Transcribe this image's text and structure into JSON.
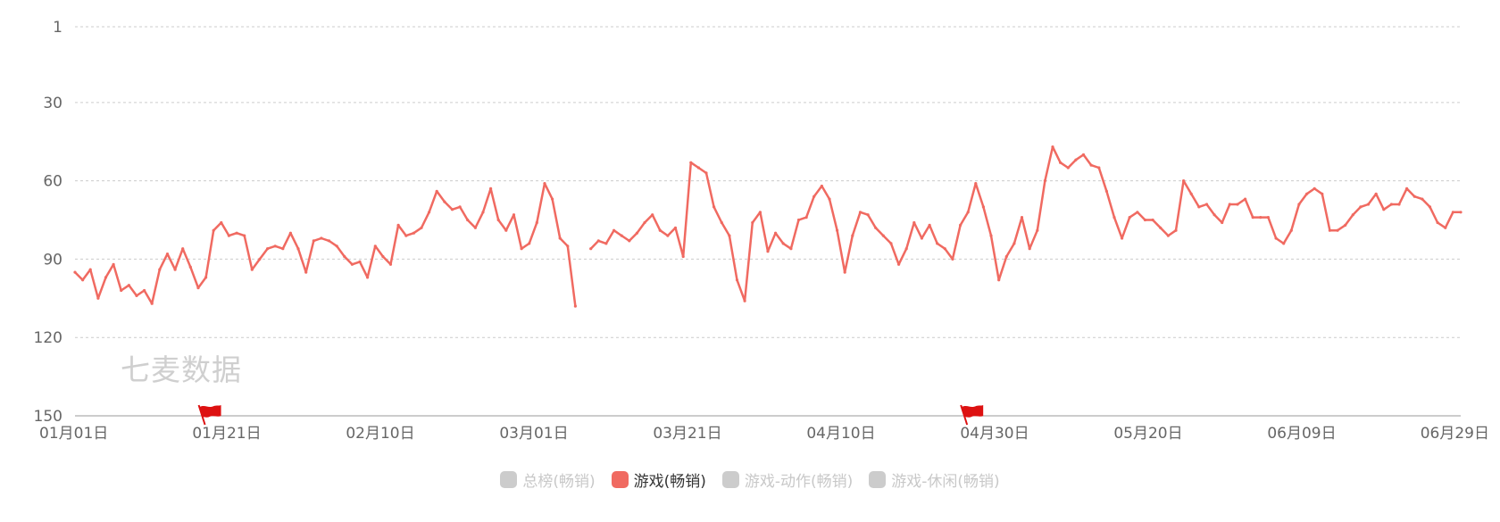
{
  "watermark": "七麦数据",
  "colors": {
    "active_series": "#f06a61",
    "inactive": "#cccccc",
    "grid": "#cccccc",
    "axis": "#999999",
    "text": "#666666",
    "flag": "#dd1111"
  },
  "legend": [
    {
      "label": "总榜(畅销)",
      "active": false
    },
    {
      "label": "游戏(畅销)",
      "active": true
    },
    {
      "label": "游戏-动作(畅销)",
      "active": false
    },
    {
      "label": "游戏-休闲(畅销)",
      "active": false
    }
  ],
  "chart_data": {
    "type": "line",
    "y_inverted": true,
    "ylim": [
      1,
      150
    ],
    "yticks": [
      "1",
      "30",
      "60",
      "90",
      "120",
      "150"
    ],
    "xticks": [
      "01月01日",
      "01月21日",
      "02月10日",
      "03月01日",
      "03月21日",
      "04月10日",
      "04月30日",
      "05月20日",
      "06月09日",
      "06月29日"
    ],
    "flags": [
      {
        "date": "01-18",
        "icon": "flag-icon"
      },
      {
        "date": "04-26",
        "icon": "flag-icon"
      }
    ],
    "series": [
      {
        "name": "游戏(畅销)",
        "color": "#f06a61",
        "segments": [
          {
            "start": "01-01",
            "values": [
              95,
              98,
              94,
              105,
              97,
              92,
              102,
              100,
              104,
              102,
              107,
              94,
              88,
              94,
              86,
              93,
              101,
              97,
              79,
              76,
              81,
              80,
              81,
              94,
              90,
              86,
              85,
              86,
              80,
              86,
              95,
              83,
              82,
              83,
              85,
              89,
              92,
              91,
              97,
              85,
              89,
              92,
              77,
              81,
              80,
              78,
              72,
              64,
              68,
              71,
              70,
              75,
              78,
              72,
              63,
              75,
              79,
              73,
              86,
              84,
              76,
              61,
              67,
              82,
              85,
              108
            ]
          },
          {
            "start": "03-08",
            "values": [
              86,
              83,
              84,
              79,
              81,
              83,
              80,
              76,
              73,
              79,
              81,
              78,
              89,
              53,
              55,
              57,
              70,
              76,
              81,
              98,
              106,
              76,
              72,
              87,
              80,
              84,
              86,
              75,
              74,
              66,
              62,
              67,
              79,
              95,
              81,
              72,
              73,
              78,
              81,
              84,
              92,
              86,
              76,
              82,
              77,
              84,
              86,
              90,
              77,
              72,
              61,
              70,
              81,
              98,
              89,
              84,
              74,
              86,
              79,
              60,
              47,
              53,
              55,
              52,
              50,
              54,
              55,
              64,
              74,
              82,
              74,
              72,
              75,
              75,
              78,
              81,
              79,
              60,
              65,
              70,
              69,
              73,
              76,
              69,
              69,
              67,
              74,
              74,
              74,
              82,
              84,
              79,
              69,
              65,
              63,
              65,
              79,
              79,
              77,
              73,
              70,
              69,
              65,
              71,
              69,
              69,
              63,
              66,
              67,
              70,
              76,
              78,
              72,
              72
            ]
          }
        ]
      }
    ]
  }
}
